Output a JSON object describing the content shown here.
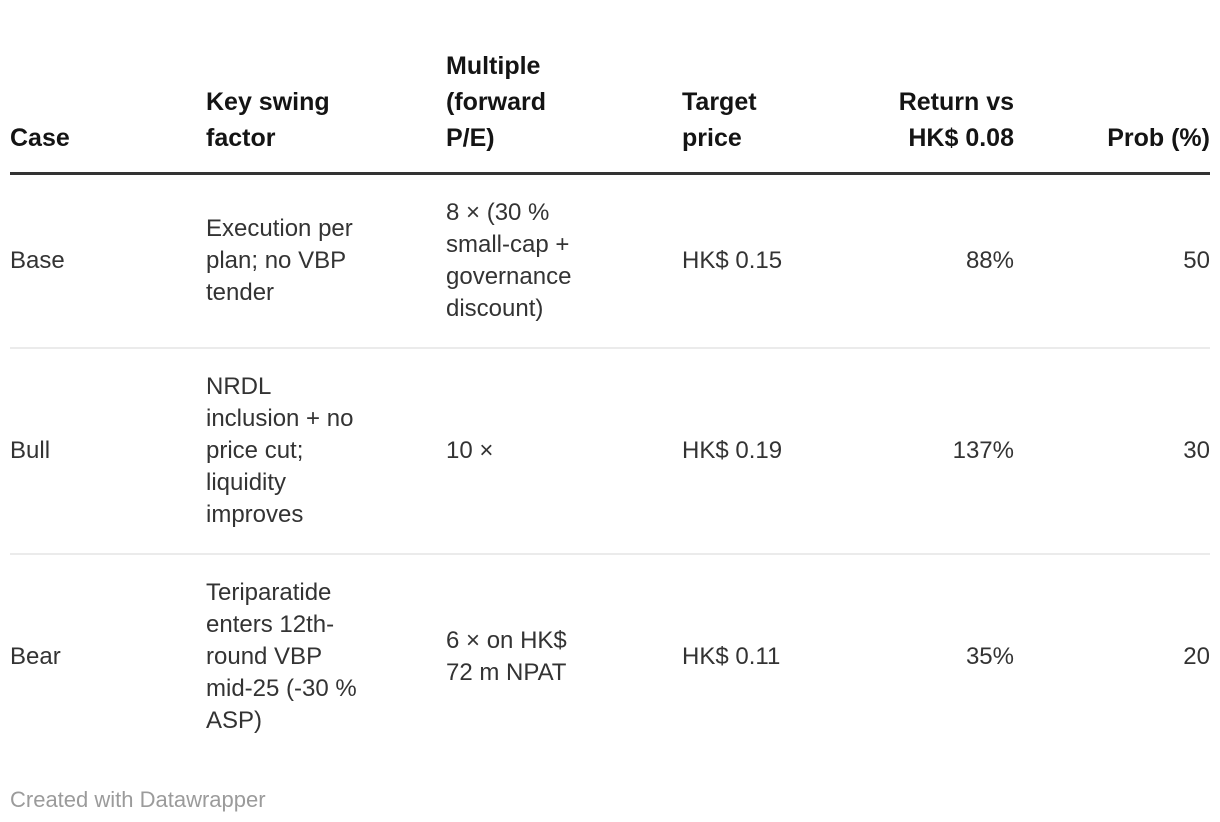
{
  "colors": {
    "background": "#ffffff",
    "header_text": "#141414",
    "body_text": "#333333",
    "header_rule": "#333333",
    "row_divider": "#ebebeb",
    "footer_text": "#9b9b9b"
  },
  "chart_data": {
    "type": "table",
    "columns": [
      "Case",
      "Key swing factor",
      "Multiple (forward P/E)",
      "Target price",
      "Return vs HK$ 0.08",
      "Prob (%)"
    ],
    "column_alignment": [
      "left",
      "left",
      "left",
      "left",
      "right",
      "right"
    ],
    "rows": [
      [
        "Base",
        "Execution per plan; no VBP tender",
        "8 × (30 % small-cap + governance discount)",
        "HK$ 0.15",
        "88%",
        "50"
      ],
      [
        "Bull",
        "NRDL inclusion + no price cut; liquidity improves",
        "10 ×",
        "HK$ 0.19",
        "137%",
        "30"
      ],
      [
        "Bear",
        "Teriparatide enters 12th-round VBP mid-25 (-30 % ASP)",
        "6 × on HK$ 72 m NPAT",
        "HK$ 0.11",
        "35%",
        "20"
      ]
    ],
    "legend_position": "none",
    "grid": "horizontal-dividers"
  },
  "display": {
    "header": [
      "Case",
      "Key swing\nfactor",
      "Multiple\n(forward\nP/E)",
      "Target\nprice",
      "Return vs\nHK$ 0.08",
      "Prob (%)"
    ],
    "rows": [
      [
        "Base",
        "Execution per\nplan; no VBP\ntender",
        "8 × (30 %\nsmall-cap +\ngovernance\ndiscount)",
        "HK$ 0.15",
        "88%",
        "50"
      ],
      [
        "Bull",
        "NRDL\ninclusion + no\nprice cut;\nliquidity\nimproves",
        "10 ×",
        "HK$ 0.19",
        "137%",
        "30"
      ],
      [
        "Bear",
        "Teriparatide\nenters 12th-\nround VBP\nmid-25 (-30 %\nASP)",
        "6 × on HK$\n72 m NPAT",
        "HK$ 0.11",
        "35%",
        "20"
      ]
    ]
  },
  "footer": {
    "credit": "Created with Datawrapper"
  }
}
